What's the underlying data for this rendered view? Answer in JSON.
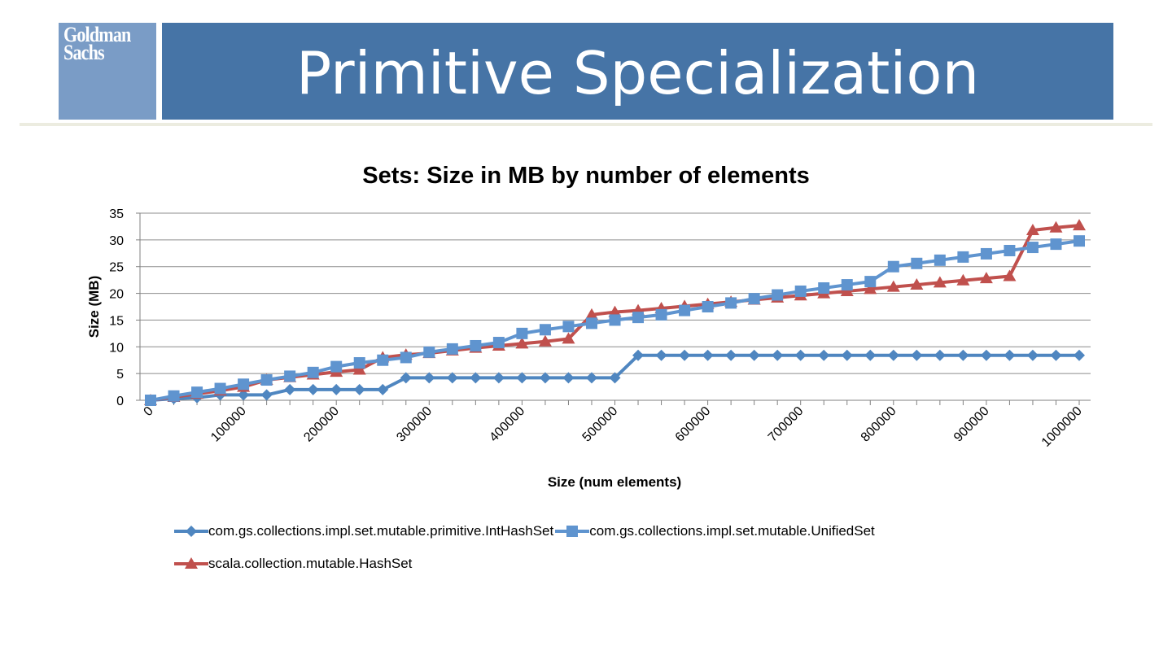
{
  "header": {
    "logo_line1": "Goldman",
    "logo_line2": "Sachs",
    "title": "Primitive Specialization"
  },
  "colors": {
    "logo_bg": "#7a9cc6",
    "title_bg": "#4674a6",
    "series_blue": "#4f86c0",
    "series_blue_light": "#5f94cf",
    "series_red": "#c0504d"
  },
  "chart_data": {
    "type": "line",
    "title": "Sets: Size in MB by number of elements",
    "xlabel": "Size (num elements)",
    "ylabel": "Size (MB)",
    "ylim": [
      0,
      35
    ],
    "yticks": [
      0,
      5,
      10,
      15,
      20,
      25,
      30,
      35
    ],
    "xlim": [
      0,
      1000000
    ],
    "xtick_labels": [
      "0",
      "100000",
      "200000",
      "300000",
      "400000",
      "500000",
      "600000",
      "700000",
      "800000",
      "900000",
      "1000000"
    ],
    "grid": "horizontal",
    "legend_position": "bottom",
    "x": [
      0,
      25000,
      50000,
      75000,
      100000,
      125000,
      150000,
      175000,
      200000,
      225000,
      250000,
      275000,
      300000,
      325000,
      350000,
      375000,
      400000,
      425000,
      450000,
      475000,
      500000,
      525000,
      550000,
      575000,
      600000,
      625000,
      650000,
      675000,
      700000,
      725000,
      750000,
      775000,
      800000,
      825000,
      850000,
      875000,
      900000,
      925000,
      950000,
      975000,
      1000000
    ],
    "series": [
      {
        "name": "com.gs.collections.impl.set.mutable.primitive.IntHashSet",
        "marker": "diamond",
        "values": [
          0,
          0.3,
          0.5,
          1,
          1,
          1,
          2,
          2,
          2,
          2,
          2,
          4.2,
          4.2,
          4.2,
          4.2,
          4.2,
          4.2,
          4.2,
          4.2,
          4.2,
          4.2,
          8.4,
          8.4,
          8.4,
          8.4,
          8.4,
          8.4,
          8.4,
          8.4,
          8.4,
          8.4,
          8.4,
          8.4,
          8.4,
          8.4,
          8.4,
          8.4,
          8.4,
          8.4,
          8.4,
          8.4
        ]
      },
      {
        "name": "com.gs.collections.impl.set.mutable.UnifiedSet",
        "marker": "square",
        "values": [
          0,
          0.8,
          1.5,
          2.2,
          3,
          3.8,
          4.5,
          5.2,
          6.3,
          7,
          7.5,
          8,
          9,
          9.6,
          10.2,
          10.8,
          12.5,
          13.2,
          13.8,
          14.4,
          15,
          15.5,
          16,
          16.8,
          17.5,
          18.2,
          19,
          19.7,
          20.4,
          21,
          21.6,
          22.2,
          25,
          25.6,
          26.2,
          26.8,
          27.4,
          28,
          28.6,
          29.2,
          29.8
        ]
      },
      {
        "name": "scala.collection.mutable.HashSet",
        "marker": "triangle",
        "values": [
          0,
          0.6,
          1.2,
          1.8,
          2.5,
          3.8,
          4.3,
          4.8,
          5.3,
          5.7,
          8,
          8.5,
          8.8,
          9.3,
          9.8,
          10.2,
          10.6,
          11,
          11.5,
          16,
          16.5,
          16.8,
          17.2,
          17.6,
          18,
          18.4,
          18.8,
          19.2,
          19.6,
          20,
          20.4,
          20.8,
          21.2,
          21.6,
          22,
          22.4,
          22.8,
          23.2,
          31.8,
          32.3,
          32.7
        ]
      }
    ]
  }
}
